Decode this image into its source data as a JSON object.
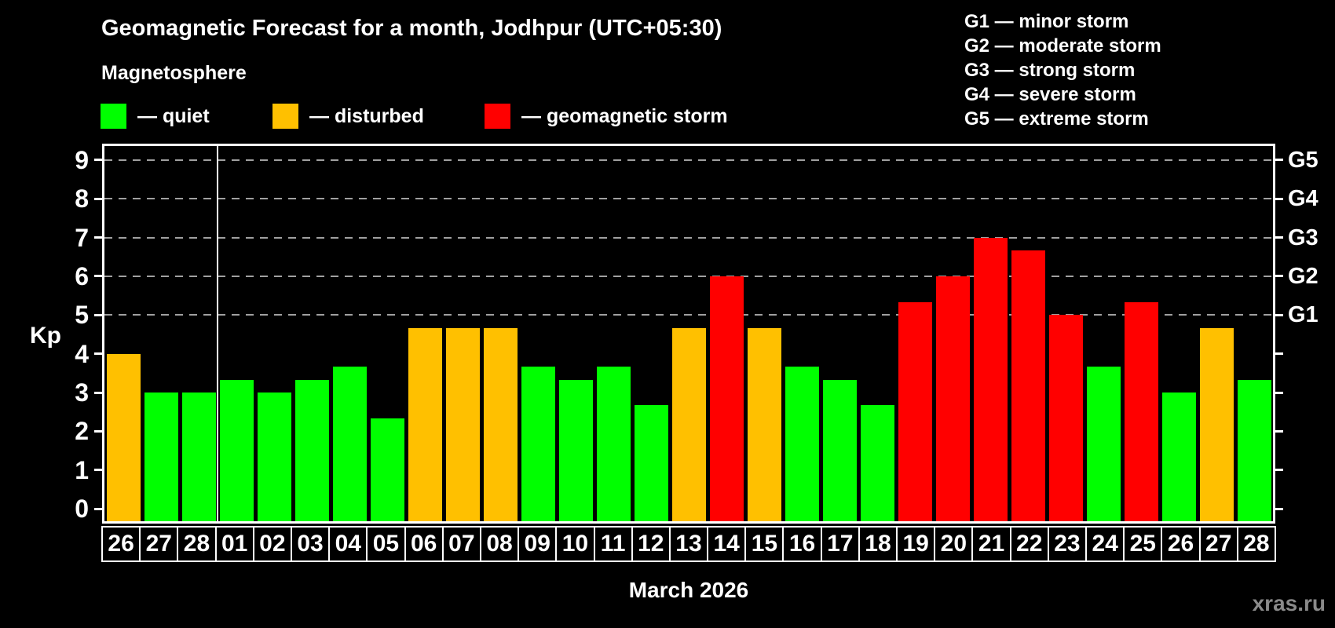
{
  "chart_data": {
    "type": "bar",
    "title": "Geomagnetic Forecast for a month, Jodhpur (UTC+05:30)",
    "subtitle": "Magnetosphere",
    "ylabel": "Kp",
    "xlabel": "March 2026",
    "watermark": "xras.ru",
    "legend": {
      "items": [
        {
          "key": "quiet",
          "label": "— quiet",
          "color": "#00ff00"
        },
        {
          "key": "disturbed",
          "label": "— disturbed",
          "color": "#ffc000"
        },
        {
          "key": "storm",
          "label": "— geomagnetic storm",
          "color": "#ff0000"
        }
      ]
    },
    "g_legend": [
      "G1 — minor storm",
      "G2 — moderate storm",
      "G3 — strong storm",
      "G4 — severe storm",
      "G5 — extreme storm"
    ],
    "colors": {
      "quiet": "#00ff00",
      "disturbed": "#ffc000",
      "storm": "#ff0000"
    },
    "grid_color": "#a0a0a0",
    "y_ticks": [
      0,
      1,
      2,
      3,
      4,
      5,
      6,
      7,
      8,
      9
    ],
    "grid_levels": [
      5,
      6,
      7,
      8,
      9
    ],
    "right_ticks": [
      {
        "kp": 5,
        "label": "G1"
      },
      {
        "kp": 6,
        "label": "G2"
      },
      {
        "kp": 7,
        "label": "G3"
      },
      {
        "kp": 8,
        "label": "G4"
      },
      {
        "kp": 9,
        "label": "G5"
      }
    ],
    "ylim": [
      0,
      9
    ],
    "grid": true,
    "legend_position": "top",
    "month_start_index": 3,
    "categories": [
      "26",
      "27",
      "28",
      "01",
      "02",
      "03",
      "04",
      "05",
      "06",
      "07",
      "08",
      "09",
      "10",
      "11",
      "12",
      "13",
      "14",
      "15",
      "16",
      "17",
      "18",
      "19",
      "20",
      "21",
      "22",
      "23",
      "24",
      "25",
      "26",
      "27",
      "28"
    ],
    "series": [
      {
        "name": "Kp forecast",
        "values": [
          4.0,
          3.0,
          3.0,
          3.33,
          3.0,
          3.33,
          3.67,
          2.33,
          4.67,
          4.67,
          4.67,
          3.67,
          3.33,
          3.67,
          2.67,
          4.67,
          6.0,
          4.67,
          3.67,
          3.33,
          2.67,
          5.33,
          6.0,
          7.0,
          6.67,
          5.0,
          3.67,
          5.33,
          3.0,
          4.67,
          3.33
        ]
      }
    ],
    "statuses": [
      "disturbed",
      "quiet",
      "quiet",
      "quiet",
      "quiet",
      "quiet",
      "quiet",
      "quiet",
      "disturbed",
      "disturbed",
      "disturbed",
      "quiet",
      "quiet",
      "quiet",
      "quiet",
      "disturbed",
      "storm",
      "disturbed",
      "quiet",
      "quiet",
      "quiet",
      "storm",
      "storm",
      "storm",
      "storm",
      "storm",
      "quiet",
      "storm",
      "quiet",
      "disturbed",
      "quiet"
    ]
  }
}
